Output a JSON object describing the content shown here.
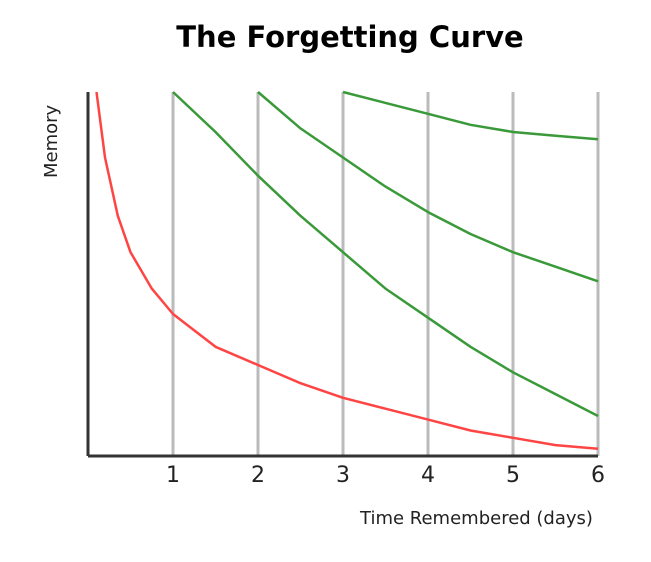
{
  "chart_data": {
    "type": "line",
    "title": "The Forgetting Curve",
    "xlabel": "Time Remembered (days)",
    "ylabel": "Memory",
    "x_ticks": [
      "1",
      "2",
      "3",
      "4",
      "5",
      "6"
    ],
    "xlim": [
      0,
      6
    ],
    "ylim": [
      0,
      1
    ],
    "grid": "vertical",
    "colors": {
      "forgetting": "#ff4444",
      "review": "#3a9a3a",
      "grid": "#bbbbbb",
      "axis": "#333333"
    },
    "series": [
      {
        "color": "#ff4444",
        "points": [
          [
            0.1,
            1.0
          ],
          [
            0.2,
            0.82
          ],
          [
            0.35,
            0.66
          ],
          [
            0.5,
            0.56
          ],
          [
            0.75,
            0.46
          ],
          [
            1.0,
            0.39
          ],
          [
            1.5,
            0.3
          ],
          [
            2.0,
            0.25
          ],
          [
            2.5,
            0.2
          ],
          [
            3.0,
            0.16
          ],
          [
            3.5,
            0.13
          ],
          [
            4.0,
            0.1
          ],
          [
            4.5,
            0.07
          ],
          [
            5.0,
            0.05
          ],
          [
            5.5,
            0.03
          ],
          [
            6.0,
            0.02
          ]
        ]
      },
      {
        "color": "#3a9a3a",
        "points": [
          [
            1.0,
            1.0
          ],
          [
            1.5,
            0.89
          ],
          [
            2.0,
            0.77
          ],
          [
            2.5,
            0.66
          ],
          [
            3.0,
            0.56
          ],
          [
            3.5,
            0.46
          ],
          [
            4.0,
            0.38
          ],
          [
            4.5,
            0.3
          ],
          [
            5.0,
            0.23
          ],
          [
            5.5,
            0.17
          ],
          [
            6.0,
            0.11
          ]
        ]
      },
      {
        "color": "#3a9a3a",
        "points": [
          [
            2.0,
            1.0
          ],
          [
            2.5,
            0.9
          ],
          [
            3.0,
            0.82
          ],
          [
            3.5,
            0.74
          ],
          [
            4.0,
            0.67
          ],
          [
            4.5,
            0.61
          ],
          [
            5.0,
            0.56
          ],
          [
            5.5,
            0.52
          ],
          [
            6.0,
            0.48
          ]
        ]
      },
      {
        "color": "#3a9a3a",
        "points": [
          [
            3.0,
            1.0
          ],
          [
            3.5,
            0.97
          ],
          [
            4.0,
            0.94
          ],
          [
            4.5,
            0.91
          ],
          [
            5.0,
            0.89
          ],
          [
            5.5,
            0.88
          ],
          [
            6.0,
            0.87
          ]
        ]
      }
    ]
  }
}
